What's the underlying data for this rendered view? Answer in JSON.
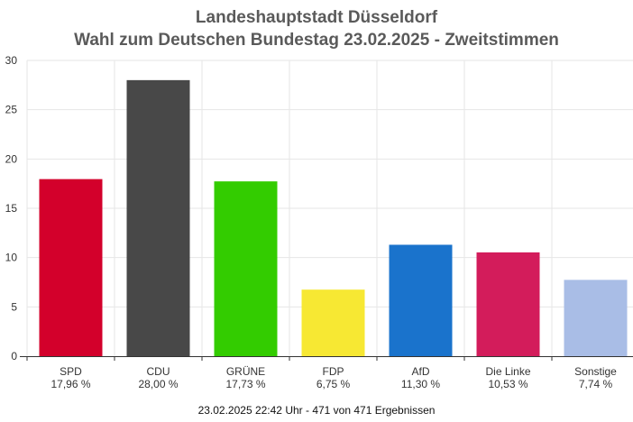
{
  "chart_data": {
    "type": "bar",
    "title": "Landeshauptstadt Düsseldorf",
    "subtitle": "Wahl zum Deutschen Bundestag 23.02.2025  - Zweitstimmen",
    "categories": [
      "SPD",
      "CDU",
      "GRÜNE",
      "FDP",
      "AfD",
      "Die Linke",
      "Sonstige"
    ],
    "values": [
      17.96,
      28.0,
      17.73,
      6.75,
      11.3,
      10.53,
      7.74
    ],
    "value_labels": [
      "17,96 %",
      "28,00 %",
      "17,73 %",
      "6,75 %",
      "11,30 %",
      "10,53 %",
      "7,74 %"
    ],
    "colors": [
      "#d3002b",
      "#484848",
      "#33cc00",
      "#f7e833",
      "#1a73cc",
      "#d31c5b",
      "#a9bde6"
    ],
    "ylim": [
      0,
      30
    ],
    "yticks": [
      "0",
      "5",
      "10",
      "15",
      "20",
      "25",
      "30"
    ],
    "ytick_values": [
      0,
      5,
      10,
      15,
      20,
      25,
      30
    ],
    "xlabel": "",
    "ylabel": "",
    "grid": true
  },
  "footer": "23.02.2025 22:42 Uhr - 471 von 471 Ergebnissen"
}
